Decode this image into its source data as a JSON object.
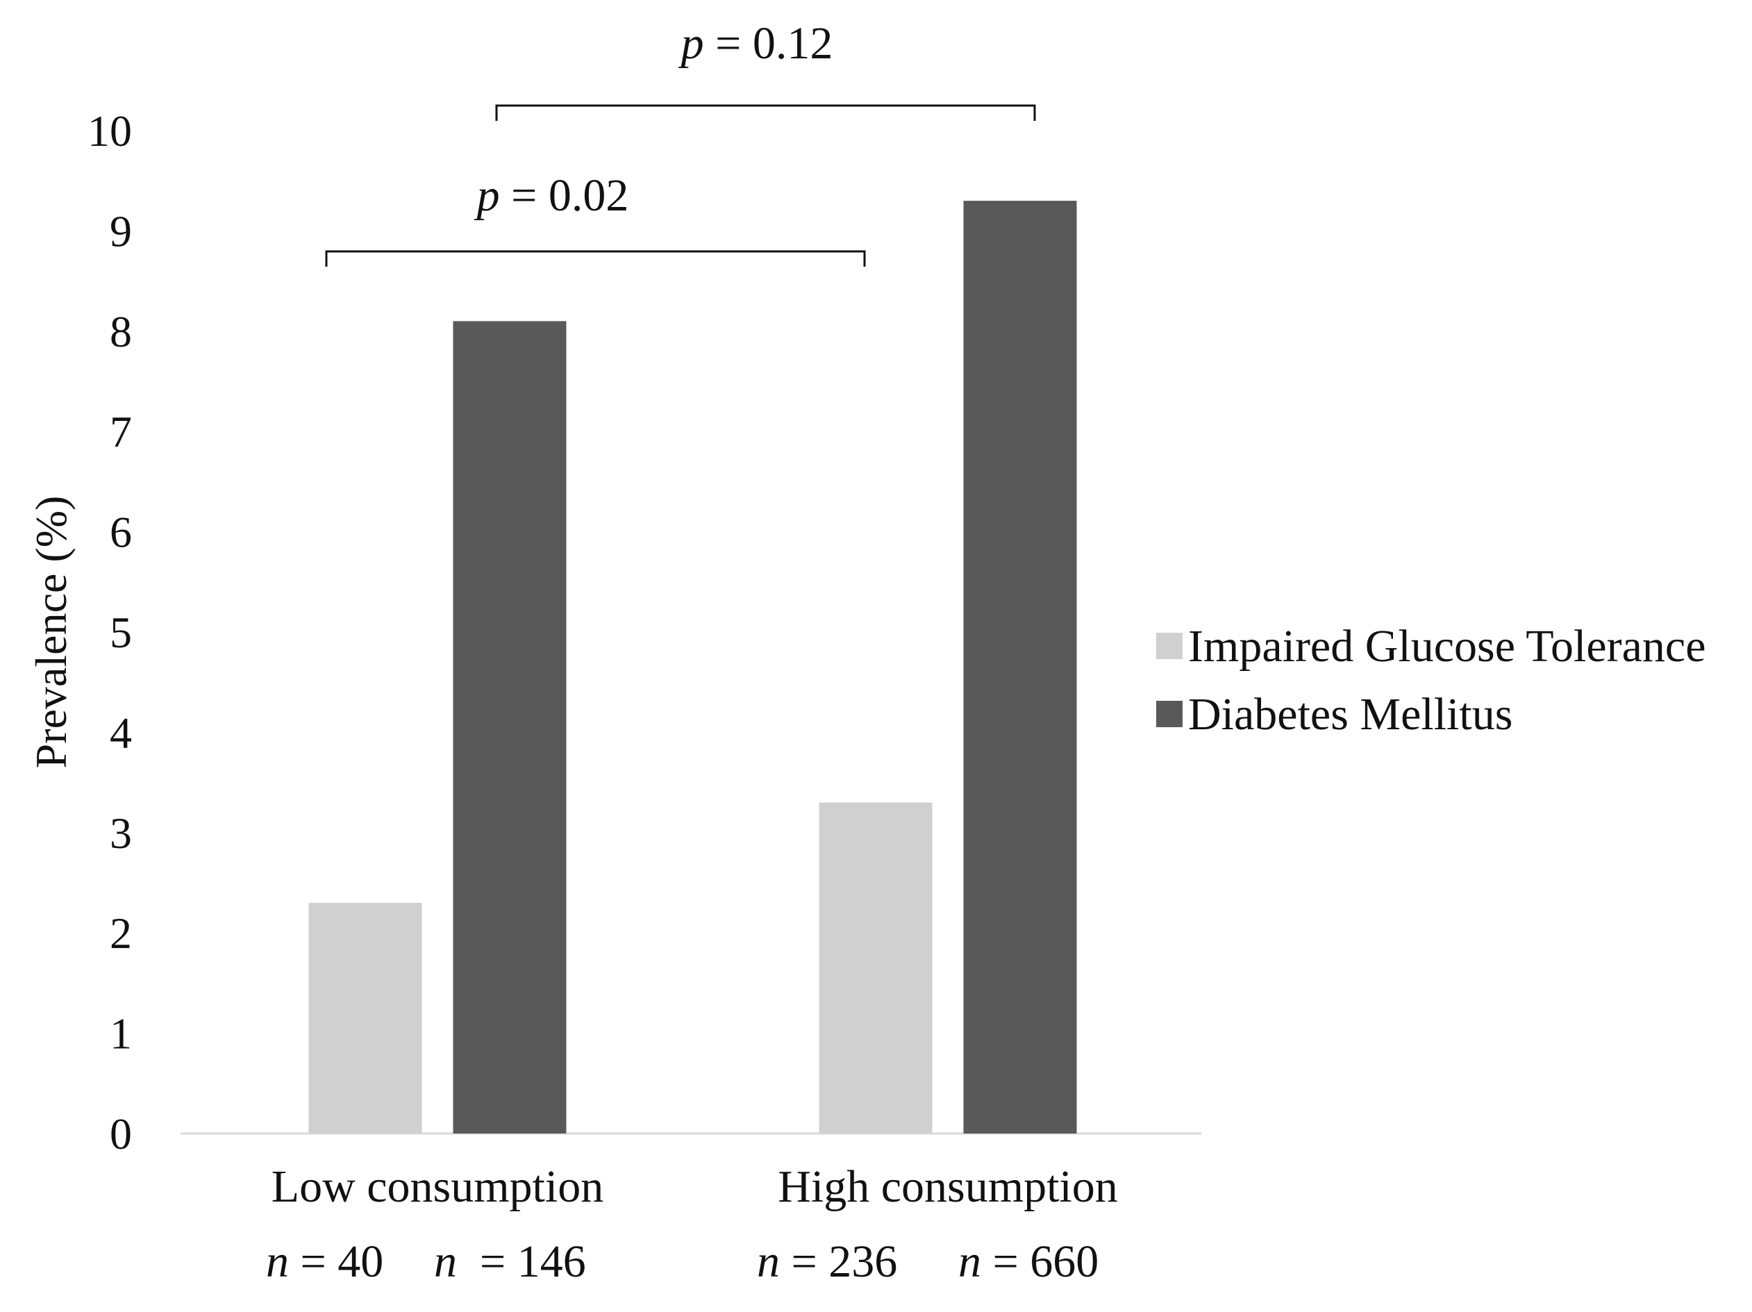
{
  "chart_data": {
    "type": "bar",
    "ylabel": "Prevalence (%)",
    "ylim": [
      0,
      10
    ],
    "yticks": [
      "0",
      "1",
      "2",
      "3",
      "4",
      "5",
      "6",
      "7",
      "8",
      "9",
      "10"
    ],
    "categories": [
      "Low consumption",
      "High consumption"
    ],
    "series": [
      {
        "name": "Impaired Glucose Tolerance",
        "color": "#d0d0d0",
        "values": [
          2.3,
          3.3
        ]
      },
      {
        "name": "Diabetes Mellitus",
        "color": "#595959",
        "values": [
          8.1,
          9.3
        ]
      }
    ],
    "sample_sizes": [
      {
        "var": "n",
        "eq": " = 40"
      },
      {
        "var": "n",
        "eq": "  = 146"
      },
      {
        "var": "n",
        "eq": " = 236"
      },
      {
        "var": "n",
        "eq": " = 660"
      }
    ],
    "annotations": [
      {
        "var": "p",
        "eq": " = 0.02",
        "from_category": 0,
        "to_category": 1,
        "level": 1
      },
      {
        "var": "p",
        "eq": " = 0.12",
        "from_category": 0,
        "to_category": 1,
        "level": 2
      }
    ],
    "axis_color": "#d9d9d9",
    "bracket_color": "#111111",
    "legend_position": "right"
  }
}
